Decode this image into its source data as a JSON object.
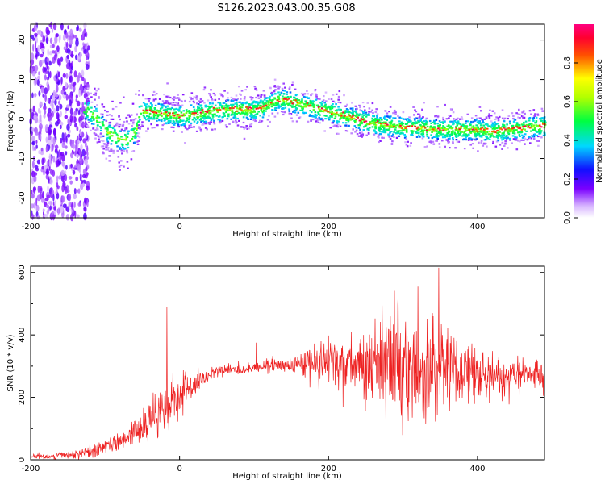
{
  "title": "S126.2023.043.00.35.G08",
  "chart_data": [
    {
      "type": "heatmap",
      "xlabel": "Height of straight line (km)",
      "ylabel": "Frequency (Hz)",
      "xlim": [
        -200,
        490
      ],
      "ylim": [
        -25,
        24
      ],
      "xticks": [
        -200,
        0,
        200,
        400
      ],
      "yticks": [
        -20,
        -10,
        0,
        10,
        20
      ],
      "colorbar": {
        "label": "Normalized spectral amplitude",
        "range": [
          0,
          1
        ],
        "ticks": [
          0.0,
          0.2,
          0.4,
          0.6,
          0.8
        ],
        "colormap": "white-purple-blue-cyan-green-yellow-red-magenta"
      },
      "ridge": {
        "x": [
          -150,
          -130,
          -110,
          -100,
          -90,
          -80,
          -70,
          -60,
          -55,
          -40,
          -20,
          0,
          20,
          40,
          60,
          80,
          100,
          110,
          120,
          130,
          140,
          150,
          160,
          170,
          180,
          190,
          200,
          220,
          240,
          260,
          280,
          300,
          320,
          340,
          360,
          380,
          400,
          420,
          440,
          460,
          490
        ],
        "y": [
          6,
          3,
          0,
          -3,
          -4,
          -5,
          -5,
          -3,
          2,
          2,
          1.5,
          1,
          1.5,
          2,
          2.5,
          2.5,
          2.5,
          3,
          4,
          5,
          5,
          4.5,
          4,
          3.5,
          3,
          2.5,
          2,
          1,
          0,
          -1,
          -1.5,
          -2,
          -2,
          -2.5,
          -2.5,
          -2.5,
          -2.5,
          -3,
          -2.5,
          -2,
          -1.5
        ]
      }
    },
    {
      "type": "line",
      "xlabel": "Height of straight line (km)",
      "ylabel": "SNR (10 * v/v)",
      "xlim": [
        -200,
        490
      ],
      "ylim": [
        0,
        620
      ],
      "xticks": [
        -200,
        0,
        200,
        400
      ],
      "yticks": [
        0,
        200,
        400,
        600
      ],
      "series": [
        {
          "color": "#ee2222",
          "envelope_x": [
            -200,
            -150,
            -120,
            -100,
            -80,
            -60,
            -40,
            -20,
            -10,
            0,
            20,
            40,
            60,
            80,
            100,
            120,
            140,
            160,
            180,
            200,
            220,
            240,
            260,
            280,
            300,
            320,
            340,
            360,
            380,
            400,
            420,
            440,
            460,
            490
          ],
          "mean": [
            10,
            15,
            25,
            40,
            60,
            90,
            120,
            160,
            180,
            190,
            240,
            270,
            290,
            290,
            295,
            300,
            300,
            305,
            315,
            310,
            300,
            300,
            305,
            300,
            280,
            290,
            300,
            290,
            280,
            270,
            260,
            265,
            270,
            270
          ],
          "spread": [
            8,
            10,
            15,
            25,
            30,
            40,
            50,
            60,
            70,
            60,
            30,
            20,
            15,
            15,
            15,
            20,
            20,
            30,
            60,
            80,
            80,
            90,
            120,
            140,
            170,
            160,
            150,
            120,
            100,
            80,
            60,
            50,
            40,
            40
          ],
          "spikes": [
            {
              "x": -17,
              "y": 490
            },
            {
              "x": 348,
              "y": 615
            },
            {
              "x": 320,
              "y": 555
            },
            {
              "x": 103,
              "y": 375
            }
          ]
        }
      ]
    }
  ],
  "colors": {
    "line": "#ee2222"
  }
}
